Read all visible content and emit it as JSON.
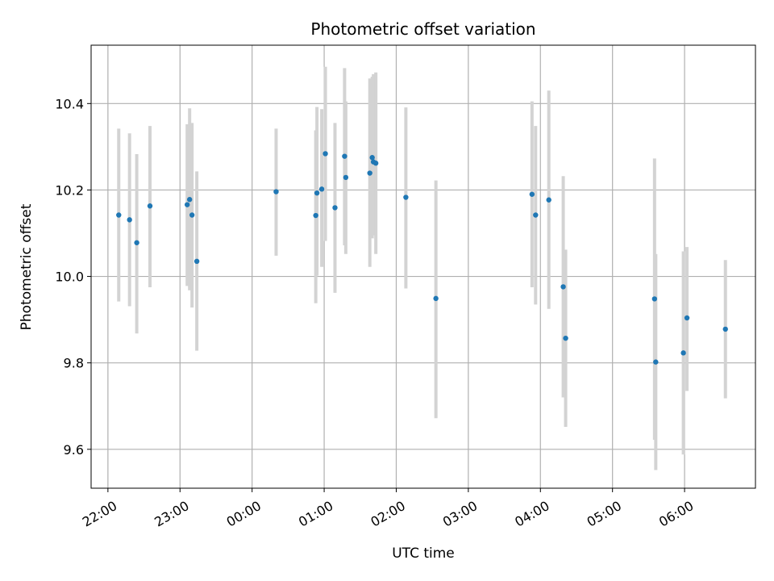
{
  "chart_data": {
    "type": "scatter",
    "title": "Photometric offset variation",
    "xlabel": "UTC time",
    "ylabel": "Photometric offset",
    "x_unit": "UTC clock time (HH:MM, crossing midnight)",
    "xlim": [
      "21:46",
      "06:59"
    ],
    "ylim": [
      9.51,
      10.535
    ],
    "x_ticks": [
      "22:00",
      "23:00",
      "00:00",
      "01:00",
      "02:00",
      "03:00",
      "04:00",
      "05:00",
      "06:00"
    ],
    "y_ticks": [
      9.6,
      9.8,
      10.0,
      10.2,
      10.4
    ],
    "grid": true,
    "colors": {
      "point": "#1f77b4",
      "error_bar": "#d3d3d3",
      "grid": "#b0b0b0"
    },
    "points": [
      {
        "x": "22:09",
        "y": 10.142,
        "yerr_low": 9.942,
        "yerr_high": 10.342
      },
      {
        "x": "22:18",
        "y": 10.131,
        "yerr_low": 9.931,
        "yerr_high": 10.331
      },
      {
        "x": "22:24",
        "y": 10.078,
        "yerr_low": 9.868,
        "yerr_high": 10.283
      },
      {
        "x": "22:35",
        "y": 10.163,
        "yerr_low": 9.975,
        "yerr_high": 10.348
      },
      {
        "x": "23:06",
        "y": 10.166,
        "yerr_low": 9.978,
        "yerr_high": 10.352
      },
      {
        "x": "23:08",
        "y": 10.178,
        "yerr_low": 9.968,
        "yerr_high": 10.389
      },
      {
        "x": "23:10",
        "y": 10.142,
        "yerr_low": 9.928,
        "yerr_high": 10.355
      },
      {
        "x": "23:14",
        "y": 10.035,
        "yerr_low": 9.828,
        "yerr_high": 10.243
      },
      {
        "x": "00:20",
        "y": 10.196,
        "yerr_low": 10.048,
        "yerr_high": 10.342
      },
      {
        "x": "00:53",
        "y": 10.141,
        "yerr_low": 9.938,
        "yerr_high": 10.338
      },
      {
        "x": "00:54",
        "y": 10.193,
        "yerr_low": 10.002,
        "yerr_high": 10.392
      },
      {
        "x": "00:58",
        "y": 10.202,
        "yerr_low": 10.022,
        "yerr_high": 10.387
      },
      {
        "x": "01:01",
        "y": 10.284,
        "yerr_low": 10.082,
        "yerr_high": 10.485
      },
      {
        "x": "01:09",
        "y": 10.159,
        "yerr_low": 9.962,
        "yerr_high": 10.355
      },
      {
        "x": "01:17",
        "y": 10.278,
        "yerr_low": 10.072,
        "yerr_high": 10.482
      },
      {
        "x": "01:18",
        "y": 10.229,
        "yerr_low": 10.052,
        "yerr_high": 10.405
      },
      {
        "x": "01:38",
        "y": 10.239,
        "yerr_low": 10.022,
        "yerr_high": 10.458
      },
      {
        "x": "01:40",
        "y": 10.275,
        "yerr_low": 10.088,
        "yerr_high": 10.462
      },
      {
        "x": "01:41",
        "y": 10.265,
        "yerr_low": 10.095,
        "yerr_high": 10.468
      },
      {
        "x": "01:43",
        "y": 10.262,
        "yerr_low": 10.052,
        "yerr_high": 10.472
      },
      {
        "x": "02:08",
        "y": 10.183,
        "yerr_low": 9.972,
        "yerr_high": 10.391
      },
      {
        "x": "02:33",
        "y": 9.949,
        "yerr_low": 9.672,
        "yerr_high": 10.222
      },
      {
        "x": "03:53",
        "y": 10.19,
        "yerr_low": 9.975,
        "yerr_high": 10.405
      },
      {
        "x": "03:56",
        "y": 10.142,
        "yerr_low": 9.935,
        "yerr_high": 10.348
      },
      {
        "x": "04:07",
        "y": 10.177,
        "yerr_low": 9.925,
        "yerr_high": 10.43
      },
      {
        "x": "04:19",
        "y": 9.976,
        "yerr_low": 9.72,
        "yerr_high": 10.232
      },
      {
        "x": "04:21",
        "y": 9.857,
        "yerr_low": 9.652,
        "yerr_high": 10.062
      },
      {
        "x": "05:35",
        "y": 9.948,
        "yerr_low": 9.622,
        "yerr_high": 10.273
      },
      {
        "x": "05:36",
        "y": 9.802,
        "yerr_low": 9.552,
        "yerr_high": 10.052
      },
      {
        "x": "05:59",
        "y": 9.823,
        "yerr_low": 9.588,
        "yerr_high": 10.058
      },
      {
        "x": "06:02",
        "y": 9.904,
        "yerr_low": 9.735,
        "yerr_high": 10.068
      },
      {
        "x": "06:34",
        "y": 9.878,
        "yerr_low": 9.718,
        "yerr_high": 10.038
      }
    ]
  }
}
